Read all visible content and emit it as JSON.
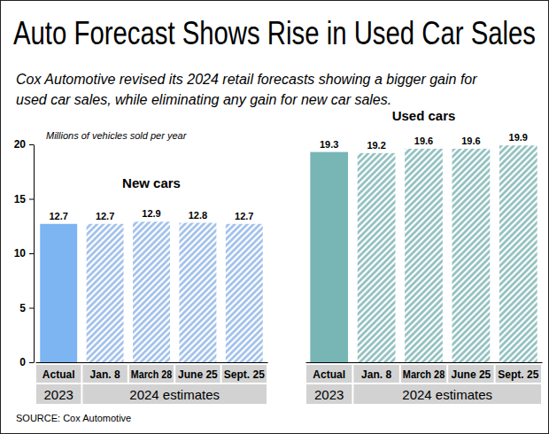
{
  "title": "Auto Forecast Shows Rise in Used Car Sales",
  "subtitle": [
    "Cox Automotive revised its 2024 retail forecasts showing a bigger gain for",
    "used car sales, while eliminating any gain for new car sales."
  ],
  "source": "SOURCE:  Cox Automotive",
  "chart_data": [
    {
      "type": "bar",
      "title": "New cars",
      "y_label": "Millions of vehicles sold per year",
      "categories": [
        "Actual",
        "Jan. 8",
        "March 28",
        "June 25",
        "Sept. 25"
      ],
      "category_groups": [
        {
          "label": "2023",
          "size": 1
        },
        {
          "label": "2024 estimates",
          "size": 4
        }
      ],
      "values": [
        12.7,
        12.7,
        12.9,
        12.8,
        12.7
      ],
      "colors": [
        "#7db4f2",
        "#9bbde9",
        "#9bbde9",
        "#9bbde9",
        "#9bbde9"
      ],
      "ylim": [
        0,
        20
      ],
      "yticks": [
        0,
        5,
        10,
        15,
        20
      ],
      "data_labels": true
    },
    {
      "type": "bar",
      "title": "Used cars",
      "categories": [
        "Actual",
        "Jan. 8",
        "March 28",
        "June 25",
        "Sept. 25"
      ],
      "category_groups": [
        {
          "label": "2023",
          "size": 1
        },
        {
          "label": "2024 estimates",
          "size": 4
        }
      ],
      "values": [
        19.3,
        19.2,
        19.6,
        19.6,
        19.9
      ],
      "colors": [
        "#78b6b6",
        "#8bbcbc",
        "#8bbcbc",
        "#8bbcbc",
        "#8bbcbc"
      ],
      "ylim": [
        0,
        20
      ],
      "data_labels": true,
      "tick_labels": "x"
    }
  ]
}
